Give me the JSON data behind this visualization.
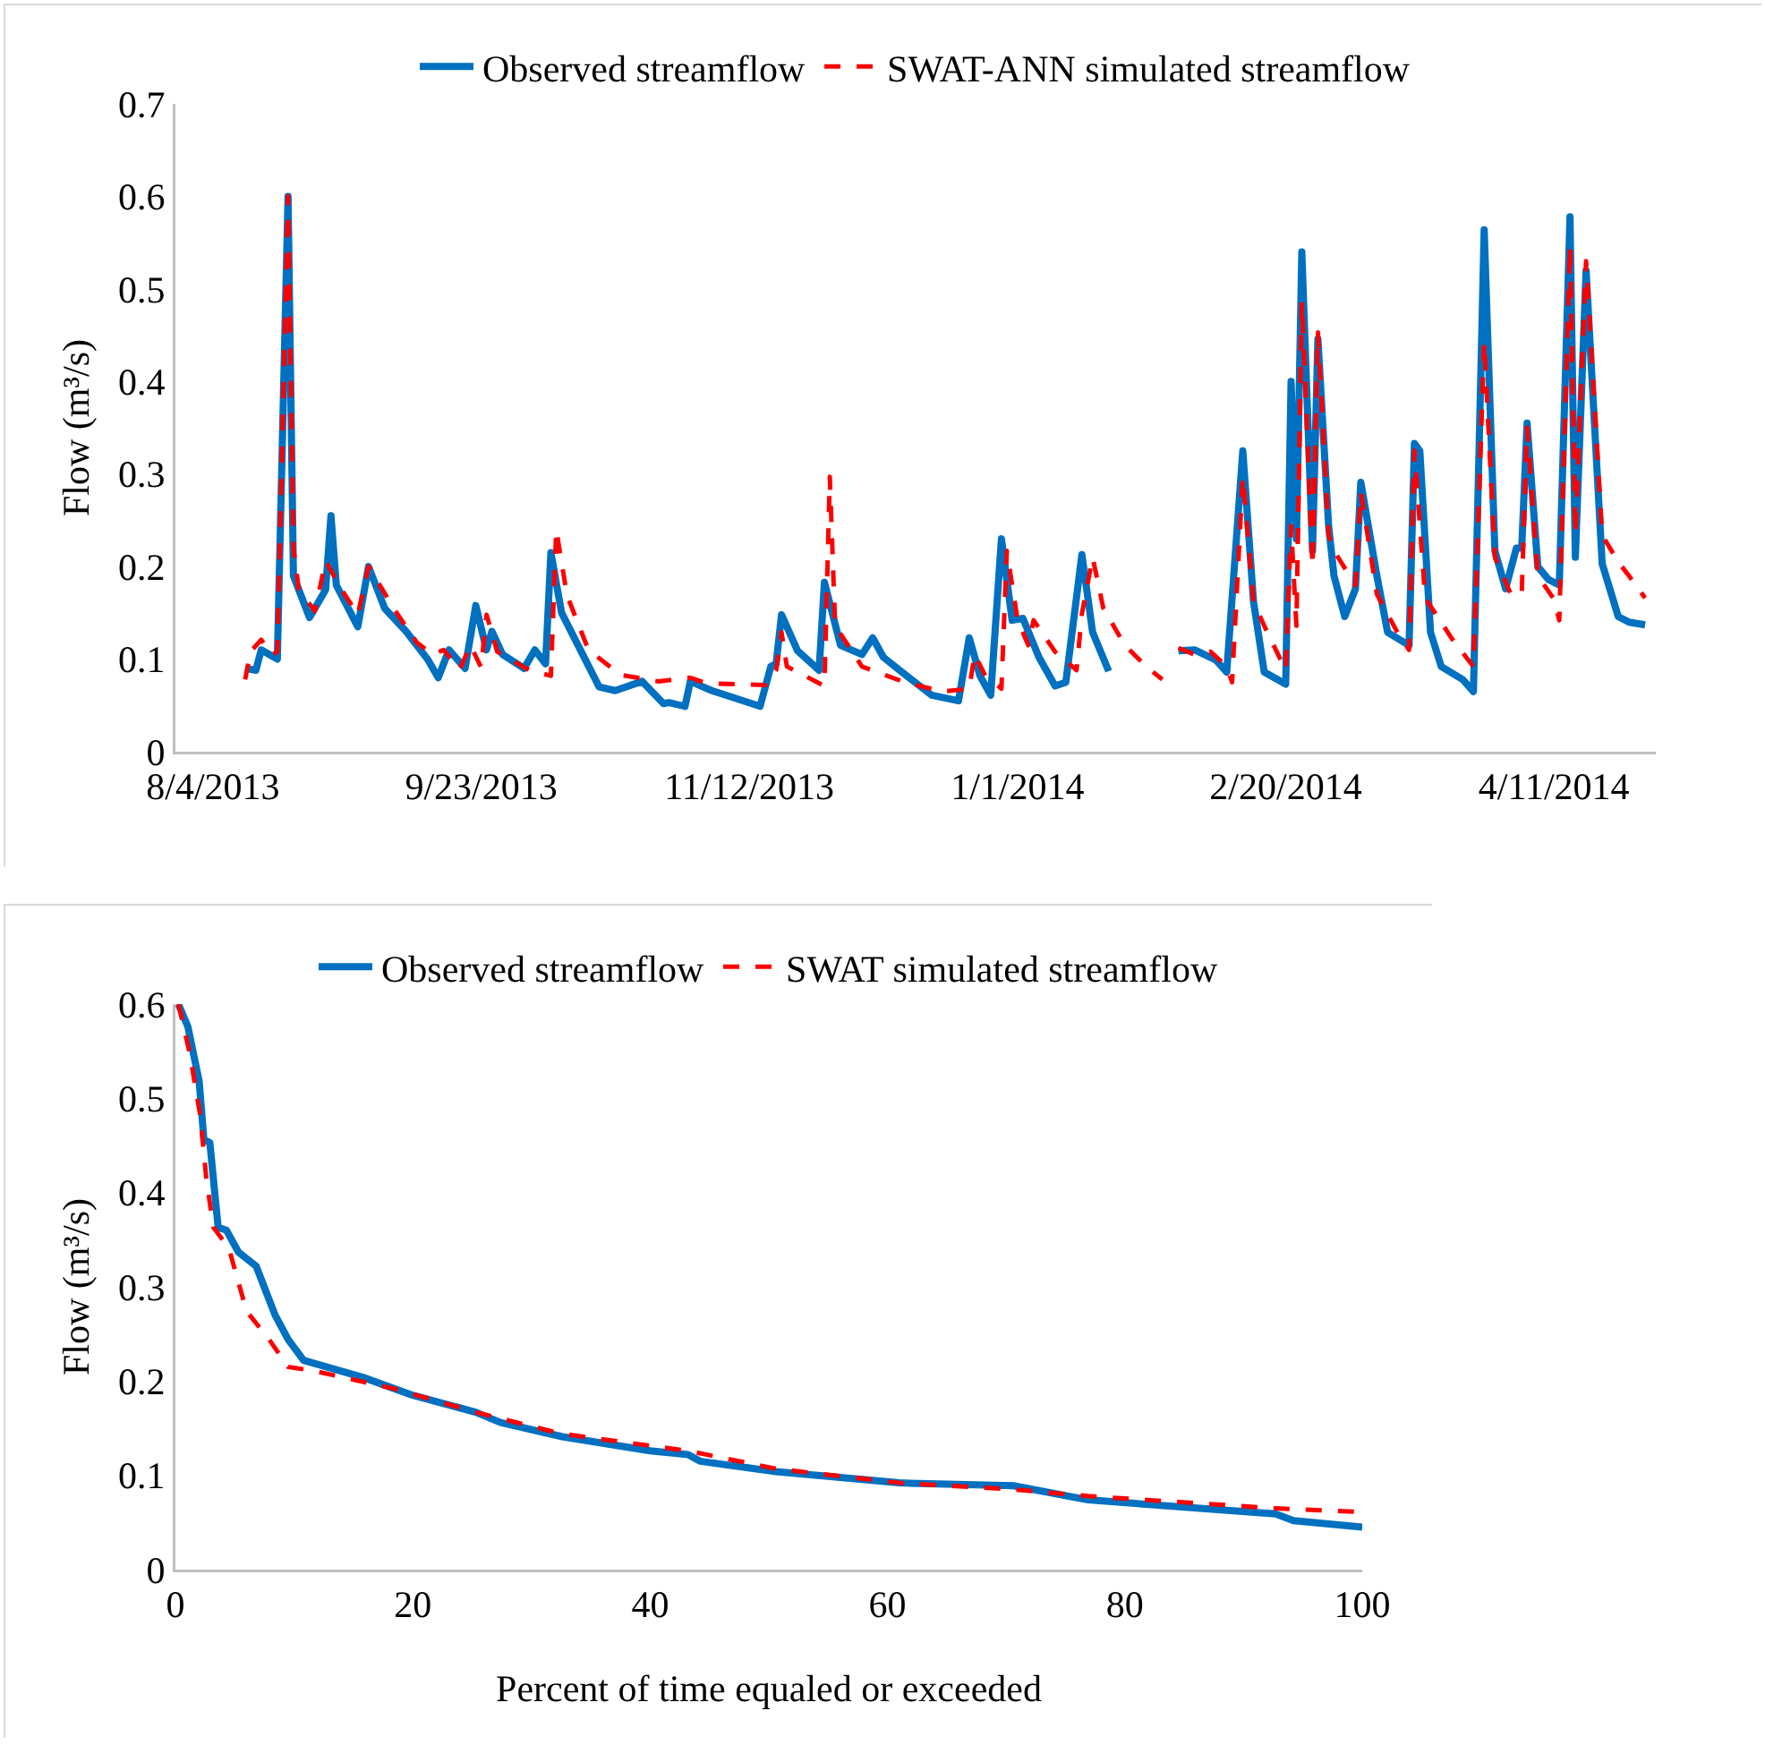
{
  "chart_data": [
    {
      "type": "line",
      "ylabel": "Flow (m³/s)",
      "legend": "top",
      "xlim": [
        "2013-07-28",
        "2014-04-30"
      ],
      "xticks": [
        {
          "value": "2013-08-04",
          "label": "8/4/2013"
        },
        {
          "value": "2013-09-23",
          "label": "9/23/2013"
        },
        {
          "value": "2013-11-12",
          "label": "11/12/2013"
        },
        {
          "value": "2014-01-01",
          "label": "1/1/2014"
        },
        {
          "value": "2014-02-20",
          "label": "2/20/2014"
        },
        {
          "value": "2014-04-11",
          "label": "4/11/2014"
        }
      ],
      "ylim": [
        0,
        0.7
      ],
      "yticks": [
        0,
        0.1,
        0.2,
        0.3,
        0.4,
        0.5,
        0.6,
        0.7
      ],
      "series": [
        {
          "name": "Observed streamflow",
          "color": "#0070c0",
          "line_style": "solid",
          "x": [
            "2013-08-10",
            "2013-08-12",
            "2013-08-13",
            "2013-08-16",
            "2013-08-18",
            "2013-08-19",
            "2013-08-22",
            "2013-08-23",
            "2013-08-25",
            "2013-08-26",
            "2013-08-27",
            "2013-08-31",
            "2013-09-02",
            "2013-09-05",
            "2013-09-09",
            "2013-09-13",
            "2013-09-15",
            "2013-09-17",
            "2013-09-20",
            "2013-09-22",
            "2013-09-24",
            "2013-09-25",
            "2013-09-27",
            "2013-10-01",
            "2013-10-03",
            "2013-10-05",
            "2013-10-06",
            "2013-10-08",
            "2013-10-15",
            "2013-10-18",
            "2013-10-23",
            "2013-10-27",
            "2013-10-28",
            "2013-10-31",
            "2013-11-01",
            "2013-11-05",
            "2013-11-14",
            "2013-11-16",
            "2013-11-17",
            "2013-11-18",
            "2013-11-21",
            "2013-11-25",
            "2013-11-26",
            "2013-11-29",
            "2013-12-03",
            "2013-12-05",
            "2013-12-07",
            "2013-12-10",
            "2013-12-16",
            "2013-12-21",
            "2013-12-23",
            "2013-12-25",
            "2013-12-27",
            "2013-12-29",
            "2013-12-31",
            "2014-01-02",
            "2014-01-05",
            "2014-01-08",
            "2014-01-10",
            "2014-01-13",
            "2014-01-15",
            "2014-01-18",
            "2014-01-25",
            "2014-01-31",
            "2014-02-03",
            "2014-02-07",
            "2014-02-09",
            "2014-02-12",
            "2014-02-14",
            "2014-02-16",
            "2014-02-20",
            "2014-02-21",
            "2014-02-22",
            "2014-02-23",
            "2014-02-25",
            "2014-02-26",
            "2014-02-28",
            "2014-03-01",
            "2014-03-03",
            "2014-03-05",
            "2014-03-06",
            "2014-03-09",
            "2014-03-11",
            "2014-03-15",
            "2014-03-16",
            "2014-03-17",
            "2014-03-19",
            "2014-03-21",
            "2014-03-25",
            "2014-03-27",
            "2014-03-29",
            "2014-03-31",
            "2014-04-02",
            "2014-04-04",
            "2014-04-05",
            "2014-04-06",
            "2014-04-08",
            "2014-04-10",
            "2014-04-12",
            "2014-04-14",
            "2014-04-15",
            "2014-04-17",
            "2014-04-20",
            "2014-04-23",
            "2014-04-25",
            "2014-04-28"
          ],
          "values": [
            0.09,
            0.088,
            0.11,
            0.1,
            0.6,
            0.19,
            0.145,
            0.155,
            0.175,
            0.255,
            0.18,
            0.135,
            0.2,
            0.155,
            0.13,
            0.1,
            0.08,
            0.11,
            0.09,
            0.158,
            0.11,
            0.13,
            0.105,
            0.09,
            0.11,
            0.095,
            0.215,
            0.15,
            0.07,
            0.066,
            0.076,
            0.052,
            0.053,
            0.049,
            0.076,
            0.066,
            0.049,
            0.092,
            0.095,
            0.148,
            0.109,
            0.088,
            0.183,
            0.115,
            0.105,
            0.123,
            0.102,
            0.088,
            0.061,
            0.055,
            0.123,
            0.082,
            0.061,
            0.23,
            0.142,
            0.144,
            0.102,
            0.071,
            0.075,
            0.213,
            0.129,
            0.087,
            null,
            0.109,
            0.11,
            0.099,
            0.086,
            0.325,
            0.162,
            0.086,
            0.073,
            0.4,
            0.23,
            0.54,
            0.217,
            0.446,
            0.244,
            0.19,
            0.146,
            0.176,
            0.291,
            0.19,
            0.129,
            0.115,
            0.333,
            0.325,
            0.129,
            0.092,
            0.078,
            0.065,
            0.564,
            0.217,
            0.176,
            0.22,
            0.22,
            0.355,
            0.2,
            0.186,
            0.18,
            0.578,
            0.21,
            0.52,
            0.203,
            0.146,
            0.14,
            0.137
          ]
        },
        {
          "name": "SWAT-ANN simulated streamflow",
          "color": "#ff0000",
          "line_style": "dashed",
          "x": [
            "2013-08-10",
            "2013-08-11",
            "2013-08-13",
            "2013-08-15",
            "2013-08-16",
            "2013-08-18",
            "2013-08-19",
            "2013-08-20",
            "2013-08-23",
            "2013-08-25",
            "2013-08-28",
            "2013-08-31",
            "2013-09-02",
            "2013-09-07",
            "2013-09-11",
            "2013-09-14",
            "2013-09-16",
            "2013-09-19",
            "2013-09-21",
            "2013-09-23",
            "2013-09-24",
            "2013-09-26",
            "2013-10-02",
            "2013-10-06",
            "2013-10-07",
            "2013-10-09",
            "2013-10-13",
            "2013-10-19",
            "2013-10-26",
            "2013-11-01",
            "2013-11-04",
            "2013-11-15",
            "2013-11-17",
            "2013-11-18",
            "2013-11-19",
            "2013-11-26",
            "2013-11-27",
            "2013-11-28",
            "2013-12-03",
            "2013-12-11",
            "2013-12-18",
            "2013-12-23",
            "2013-12-24",
            "2013-12-26",
            "2013-12-29",
            "2013-12-30",
            "2014-01-01",
            "2014-01-03",
            "2014-01-04",
            "2014-01-08",
            "2014-01-12",
            "2014-01-13",
            "2014-01-15",
            "2014-01-17",
            "2014-01-21",
            "2014-01-25",
            "2014-01-28",
            "2014-01-29",
            "2014-01-31",
            "2014-02-03",
            "2014-02-06",
            "2014-02-09",
            "2014-02-10",
            "2014-02-12",
            "2014-02-14",
            "2014-02-16",
            "2014-02-20",
            "2014-02-21",
            "2014-02-22",
            "2014-02-23",
            "2014-02-25",
            "2014-02-26",
            "2014-02-28",
            "2014-03-01",
            "2014-03-05",
            "2014-03-06",
            "2014-03-09",
            "2014-03-13",
            "2014-03-15",
            "2014-03-16",
            "2014-03-18",
            "2014-03-23",
            "2014-03-27",
            "2014-03-29",
            "2014-03-31",
            "2014-04-03",
            "2014-04-05",
            "2014-04-06",
            "2014-04-08",
            "2014-04-11",
            "2014-04-12",
            "2014-04-14",
            "2014-04-15",
            "2014-04-17",
            "2014-04-20",
            "2014-04-23",
            "2014-04-25",
            "2014-04-28"
          ],
          "values": [
            0.078,
            0.108,
            0.121,
            0.105,
            0.108,
            0.6,
            0.22,
            0.175,
            0.152,
            0.206,
            0.175,
            0.148,
            0.2,
            0.152,
            0.118,
            0.105,
            0.11,
            0.089,
            0.115,
            0.091,
            0.148,
            0.108,
            0.088,
            0.082,
            0.24,
            0.169,
            0.11,
            0.083,
            0.076,
            0.08,
            0.074,
            0.072,
            0.088,
            0.129,
            0.092,
            0.071,
            0.297,
            0.136,
            0.092,
            0.075,
            0.065,
            0.068,
            0.105,
            0.082,
            0.068,
            0.217,
            0.143,
            0.115,
            0.142,
            0.108,
            0.088,
            0.149,
            0.21,
            0.155,
            0.115,
            0.092,
            0.078,
            null,
            0.112,
            0.105,
            0.108,
            0.092,
            0.075,
            0.297,
            0.162,
            0.136,
            0.088,
            0.244,
            0.136,
            0.486,
            0.2,
            0.453,
            0.234,
            0.217,
            0.18,
            0.28,
            0.17,
            0.127,
            0.11,
            0.325,
            0.166,
            0.122,
            0.092,
            0.443,
            0.21,
            0.17,
            0.17,
            0.35,
            0.19,
            0.165,
            0.142,
            0.547,
            0.235,
            0.53,
            0.234,
            0.205,
            0.19,
            0.166
          ]
        }
      ]
    },
    {
      "type": "line",
      "xlabel": "Percent of time equaled or exceeded",
      "ylabel": "Flow (m³/s)",
      "legend": "top",
      "xlim": [
        0,
        100
      ],
      "xticks": [
        0,
        20,
        40,
        60,
        80,
        100
      ],
      "ylim": [
        0,
        0.6
      ],
      "yticks": [
        0,
        0.1,
        0.2,
        0.3,
        0.4,
        0.5,
        0.6
      ],
      "series": [
        {
          "name": "Observed streamflow",
          "color": "#0070c0",
          "line_style": "solid",
          "x": [
            0.25,
            1.05,
            2,
            2.4,
            2.9,
            3.6,
            4.3,
            5.3,
            6.8,
            7.6,
            8.4,
            9.5,
            10.8,
            15.8,
            20,
            25.3,
            27.4,
            32.6,
            40,
            43.2,
            44.2,
            50.6,
            61,
            70.6,
            76.9,
            92.7,
            94.2,
            100
          ],
          "values": [
            0.6,
            0.576,
            0.518,
            0.456,
            0.453,
            0.363,
            0.36,
            0.337,
            0.322,
            0.296,
            0.27,
            0.244,
            0.222,
            0.204,
            0.185,
            0.167,
            0.156,
            0.141,
            0.126,
            0.122,
            0.115,
            0.104,
            0.092,
            0.089,
            0.074,
            0.059,
            0.052,
            0.045
          ]
        },
        {
          "name": "SWAT simulated streamflow",
          "color": "#ff0000",
          "line_style": "dashed",
          "x": [
            0.25,
            1.2,
            2.1,
            2.6,
            3.2,
            4.5,
            6,
            7.9,
            9.5,
            11.6,
            18.4,
            25.3,
            32.6,
            43.2,
            50.6,
            61,
            70.6,
            76.9,
            92.7,
            100
          ],
          "values": [
            0.6,
            0.548,
            0.481,
            0.415,
            0.363,
            0.341,
            0.274,
            0.244,
            0.215,
            0.211,
            0.192,
            0.167,
            0.144,
            0.126,
            0.107,
            0.092,
            0.085,
            0.078,
            0.065,
            0.061
          ]
        }
      ]
    }
  ]
}
